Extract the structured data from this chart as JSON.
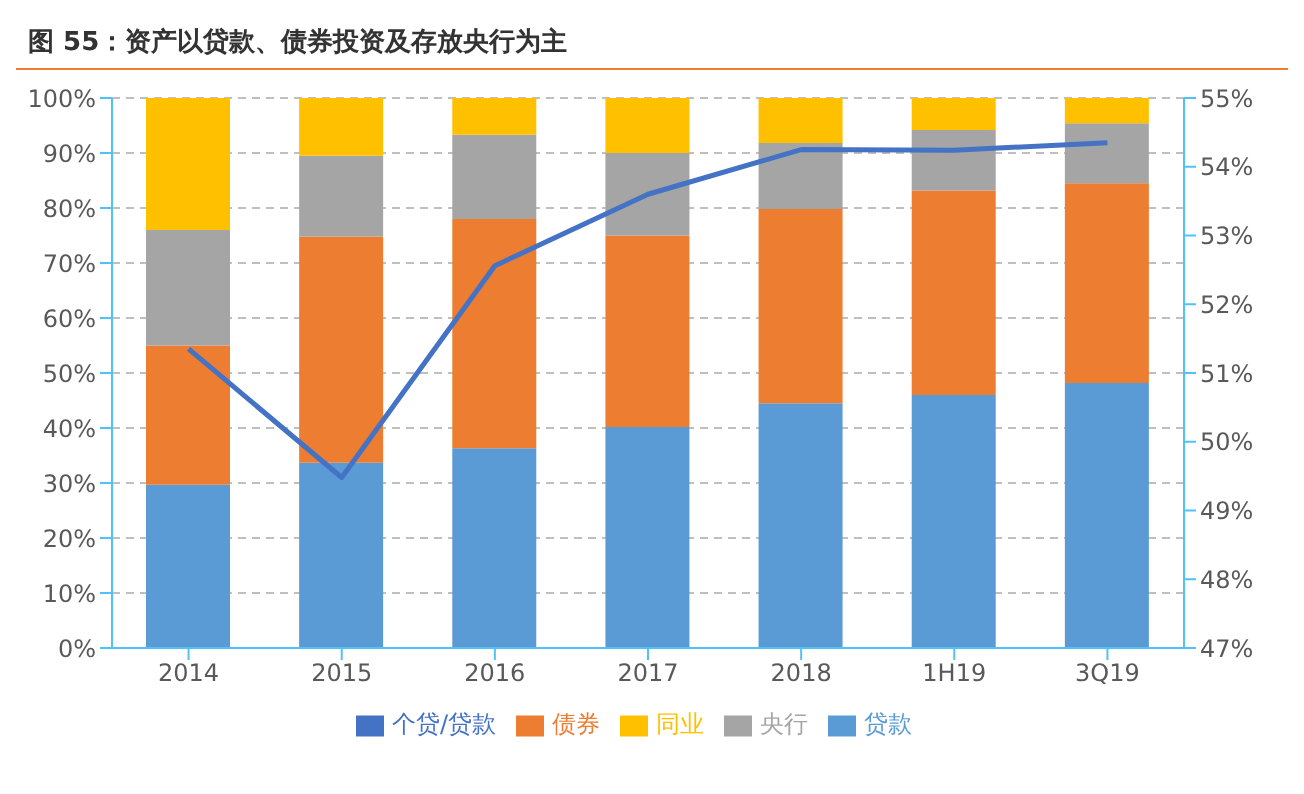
{
  "chart_data": {
    "type": "bar",
    "title": "图 55：资产以贷款、债券投资及存放央行为主",
    "categories": [
      "2014",
      "2015",
      "2016",
      "2017",
      "2018",
      "1H19",
      "3Q19"
    ],
    "stacked": true,
    "series": [
      {
        "name": "贷款",
        "color": "#5b9bd5",
        "values": [
          29.7,
          33.7,
          36.3,
          40.2,
          44.5,
          46,
          48.2
        ]
      },
      {
        "name": "债券",
        "color": "#ed7d31",
        "values": [
          25.3,
          41.1,
          41.7,
          34.8,
          35.3,
          37.2,
          36.3
        ]
      },
      {
        "name": "央行",
        "color": "#a5a5a5",
        "values": [
          21,
          14.7,
          15.3,
          15,
          12,
          11,
          10.9
        ]
      },
      {
        "name": "同业",
        "color": "#ffc000",
        "values": [
          24,
          10.5,
          6.7,
          10,
          8.2,
          5.8,
          4.6
        ]
      },
      {
        "name": "个贷/贷款",
        "type": "line",
        "axis": "y2",
        "color": "#4472c4",
        "values": [
          51.35,
          49.48,
          52.56,
          53.6,
          54.25,
          54.24,
          54.35
        ]
      }
    ],
    "ylim": [
      0,
      100
    ],
    "yticks": [
      {
        "value": 0,
        "label": "0%"
      },
      {
        "value": 10,
        "label": "10%"
      },
      {
        "value": 20,
        "label": "20%"
      },
      {
        "value": 30,
        "label": "30%"
      },
      {
        "value": 40,
        "label": "40%"
      },
      {
        "value": 50,
        "label": "50%"
      },
      {
        "value": 60,
        "label": "60%"
      },
      {
        "value": 70,
        "label": "70%"
      },
      {
        "value": 80,
        "label": "80%"
      },
      {
        "value": 90,
        "label": "90%"
      },
      {
        "value": 100,
        "label": "100%"
      }
    ],
    "y2lim": [
      47,
      55
    ],
    "y2ticks": [
      {
        "value": 47,
        "label": "47%"
      },
      {
        "value": 48,
        "label": "48%"
      },
      {
        "value": 49,
        "label": "49%"
      },
      {
        "value": 50,
        "label": "50%"
      },
      {
        "value": 51,
        "label": "51%"
      },
      {
        "value": 52,
        "label": "52%"
      },
      {
        "value": 53,
        "label": "53%"
      },
      {
        "value": 54,
        "label": "54%"
      },
      {
        "value": 55,
        "label": "55%"
      }
    ],
    "grid": "y",
    "legend": "bottom",
    "marker": "none",
    "line_style": "solid"
  }
}
